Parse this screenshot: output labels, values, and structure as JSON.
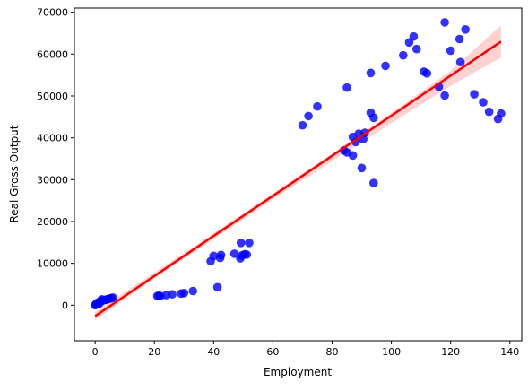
{
  "chart_data": {
    "type": "scatter",
    "xlabel": "Employment",
    "ylabel": "Real Gross Output",
    "xlim": [
      -7,
      144
    ],
    "ylim": [
      -8500,
      71000
    ],
    "xticks": [
      0,
      20,
      40,
      60,
      80,
      100,
      120,
      140
    ],
    "yticks": [
      0,
      10000,
      20000,
      30000,
      40000,
      50000,
      60000,
      70000
    ],
    "grid": false,
    "colors": {
      "points": "#0000ff",
      "fit_line": "#ff0000",
      "confidence_band": "#ffb3b3"
    },
    "points": [
      [
        0,
        0
      ],
      [
        0.2,
        150
      ],
      [
        0.4,
        280
      ],
      [
        0.6,
        420
      ],
      [
        0.8,
        520
      ],
      [
        1,
        650
      ],
      [
        1.2,
        300
      ],
      [
        1.5,
        500
      ],
      [
        2,
        900
      ],
      [
        2.2,
        1400
      ],
      [
        2.6,
        1100
      ],
      [
        3,
        1200
      ],
      [
        3.5,
        1300
      ],
      [
        4,
        1400
      ],
      [
        4.5,
        1500
      ],
      [
        5,
        1600
      ],
      [
        5.5,
        1700
      ],
      [
        6,
        1800
      ],
      [
        21,
        2200
      ],
      [
        21.5,
        2250
      ],
      [
        22,
        2200
      ],
      [
        24,
        2400
      ],
      [
        26,
        2600
      ],
      [
        29,
        2800
      ],
      [
        30,
        2900
      ],
      [
        33,
        3400
      ],
      [
        39,
        10500
      ],
      [
        40,
        11800
      ],
      [
        41.3,
        4300
      ],
      [
        42.2,
        11300
      ],
      [
        42.5,
        12000
      ],
      [
        47,
        12300
      ],
      [
        49,
        11200
      ],
      [
        49.5,
        11900
      ],
      [
        49.2,
        14900
      ],
      [
        50.5,
        12200
      ],
      [
        51.2,
        12100
      ],
      [
        52,
        14900
      ],
      [
        70,
        43000
      ],
      [
        72,
        45200
      ],
      [
        75,
        47500
      ],
      [
        84,
        37000
      ],
      [
        85,
        36500
      ],
      [
        85,
        52000
      ],
      [
        87,
        35800
      ],
      [
        87,
        40200
      ],
      [
        88,
        39000
      ],
      [
        89,
        41000
      ],
      [
        90,
        32800
      ],
      [
        90.5,
        39700
      ],
      [
        91,
        41200
      ],
      [
        93,
        46000
      ],
      [
        93,
        55500
      ],
      [
        94,
        44800
      ],
      [
        94,
        29200
      ],
      [
        98,
        57200
      ],
      [
        104,
        59700
      ],
      [
        106,
        62800
      ],
      [
        107.5,
        64200
      ],
      [
        108.5,
        61200
      ],
      [
        111,
        55800
      ],
      [
        112,
        55400
      ],
      [
        116,
        52200
      ],
      [
        118,
        50100
      ],
      [
        118,
        67600
      ],
      [
        120,
        60800
      ],
      [
        123,
        63600
      ],
      [
        123.3,
        58100
      ],
      [
        125,
        65900
      ],
      [
        128,
        50400
      ],
      [
        131,
        48500
      ],
      [
        133,
        46200
      ],
      [
        136,
        44500
      ],
      [
        137,
        45800
      ]
    ],
    "fit_line": {
      "x": [
        0,
        137
      ],
      "y": [
        -2600,
        63000
      ]
    },
    "confidence_band": {
      "x": [
        0,
        20,
        40,
        60,
        80,
        100,
        120,
        137
      ],
      "lower": [
        -3600,
        6400,
        15800,
        25300,
        34400,
        43500,
        52400,
        59200
      ],
      "upper": [
        -1600,
        7800,
        17200,
        26700,
        36200,
        46000,
        56000,
        66900
      ]
    }
  }
}
